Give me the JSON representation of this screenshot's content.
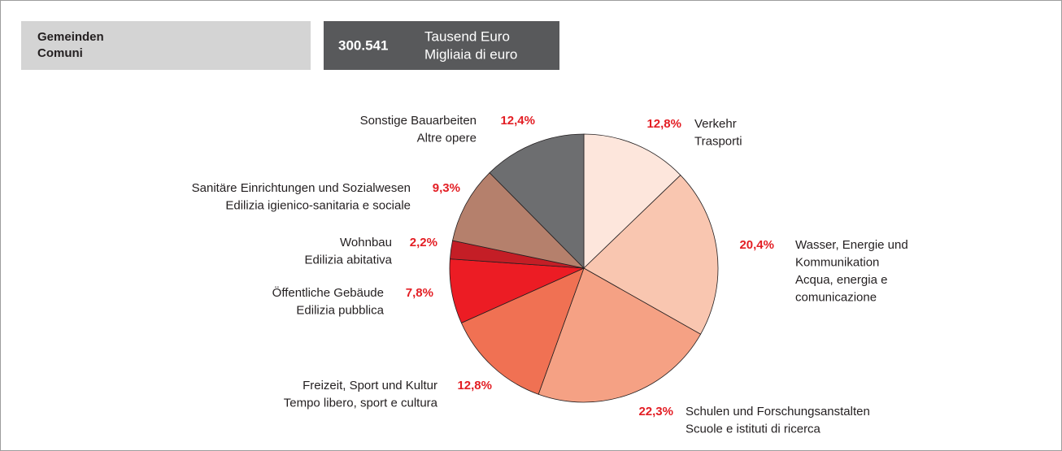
{
  "header": {
    "title": [
      "Gemeinden",
      "Comuni"
    ],
    "total": "300.541",
    "unit": [
      "Tausend Euro",
      "Migliaia di euro"
    ]
  },
  "chart_data": {
    "type": "pie",
    "categories": [
      [
        "Verkehr",
        "Trasporti"
      ],
      [
        "Wasser, Energie und",
        "Kommunikation",
        "Acqua, energia e",
        "comunicazione"
      ],
      [
        "Schulen und Forschungsanstalten",
        "Scuole e istituti di ricerca"
      ],
      [
        "Freizeit, Sport und Kultur",
        "Tempo libero, sport e cultura"
      ],
      [
        "Öffentliche Gebäude",
        "Edilizia pubblica"
      ],
      [
        "Wohnbau",
        "Edilizia abitativa"
      ],
      [
        "Sanitäre Einrichtungen und Sozialwesen",
        "Edilizia igienico-sanitaria e sociale"
      ],
      [
        "Sonstige Bauarbeiten",
        "Altre opere"
      ]
    ],
    "values": [
      12.8,
      20.4,
      22.3,
      12.8,
      7.8,
      2.2,
      9.3,
      12.4
    ],
    "value_labels": [
      "12,8%",
      "20,4%",
      "22,3%",
      "12,8%",
      "7,8%",
      "2,2%",
      "9,3%",
      "12,4%"
    ],
    "colors": [
      "#fde6dc",
      "#f9c6b0",
      "#f5a184",
      "#f07153",
      "#ec1c24",
      "#c41e26",
      "#b5806c",
      "#6d6e70"
    ]
  }
}
